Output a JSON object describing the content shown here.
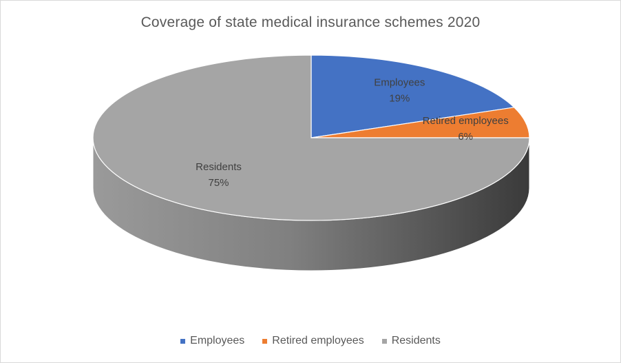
{
  "chart_data": {
    "type": "pie",
    "title": "Coverage of state medical insurance schemes 2020",
    "categories": [
      "Employees",
      "Retired employees",
      "Residents"
    ],
    "values": [
      19,
      6,
      75
    ],
    "value_labels": [
      "19%",
      "6%",
      "75%"
    ],
    "colors": [
      "#4472c4",
      "#ed7d31",
      "#a5a5a5"
    ],
    "style": "3d",
    "legend_position": "bottom"
  }
}
